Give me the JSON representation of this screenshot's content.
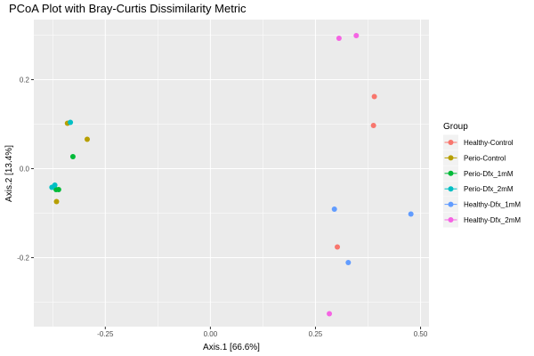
{
  "chart_data": {
    "type": "scatter",
    "title": "PCoA Plot with Bray-Curtis Dissimilarity Metric",
    "xlabel": "Axis.1   [66.6%]",
    "ylabel": "Axis.2   [13.4%]",
    "xlim": [
      -0.42,
      0.52
    ],
    "ylim": [
      -0.355,
      0.335
    ],
    "x_ticks": [
      -0.25,
      0.0,
      0.25,
      0.5
    ],
    "x_tick_labels": [
      "-0.25",
      "0.00",
      "0.25",
      "0.50"
    ],
    "y_ticks": [
      -0.2,
      0.0,
      0.2
    ],
    "y_tick_labels": [
      "-0.2",
      "0.0",
      "0.2"
    ],
    "grid": true,
    "legend_title": "Group",
    "legend_placement": "right",
    "series": [
      {
        "name": "Healthy-Control",
        "color": "#F8766D",
        "points": [
          [
            0.39,
            0.162
          ],
          [
            0.388,
            0.097
          ],
          [
            0.302,
            -0.176
          ]
        ]
      },
      {
        "name": "Perio-Control",
        "color": "#B79F00",
        "points": [
          [
            -0.34,
            0.102
          ],
          [
            -0.293,
            0.066
          ],
          [
            -0.366,
            -0.074
          ]
        ]
      },
      {
        "name": "Perio-Dfx_1mM",
        "color": "#00BA38",
        "points": [
          [
            -0.327,
            0.027
          ],
          [
            -0.367,
            -0.047
          ],
          [
            -0.361,
            -0.047
          ]
        ]
      },
      {
        "name": "Perio-Dfx_2mM",
        "color": "#00BFC4",
        "points": [
          [
            -0.333,
            0.104
          ],
          [
            -0.377,
            -0.042
          ],
          [
            -0.37,
            -0.037
          ]
        ]
      },
      {
        "name": "Healthy-Dfx_1mM",
        "color": "#619CFF",
        "points": [
          [
            0.477,
            -0.102
          ],
          [
            0.295,
            -0.091
          ],
          [
            0.328,
            -0.211
          ]
        ]
      },
      {
        "name": "Healthy-Dfx_2mM",
        "color": "#F564E3",
        "points": [
          [
            0.306,
            0.293
          ],
          [
            0.347,
            0.299
          ],
          [
            0.283,
            -0.326
          ]
        ]
      }
    ]
  }
}
